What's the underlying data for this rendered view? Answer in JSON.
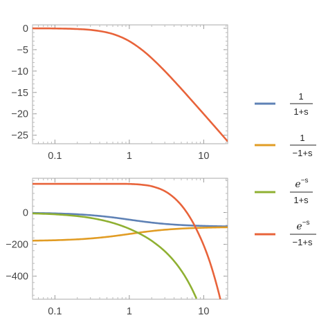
{
  "chart_data": [
    {
      "type": "line",
      "xscale": "log",
      "xlim": [
        0.05,
        21
      ],
      "ylim": [
        -27,
        0.8
      ],
      "x_ticks": [
        0.1,
        1,
        10
      ],
      "x_tick_labels": [
        "0.1",
        "1",
        "10"
      ],
      "y_ticks": [
        0,
        -5,
        -10,
        -15,
        -20,
        -25
      ],
      "y_tick_labels": [
        "0",
        "−5",
        "−10",
        "−15",
        "−20",
        "−25"
      ],
      "grid": false,
      "series": [
        {
          "color": "#e8633a",
          "points": [
            [
              0.05,
              -0.01
            ],
            [
              0.1,
              -0.04
            ],
            [
              0.2,
              -0.17
            ],
            [
              0.3,
              -0.37
            ],
            [
              0.5,
              -0.97
            ],
            [
              0.7,
              -1.74
            ],
            [
              1,
              -3.01
            ],
            [
              1.5,
              -5.12
            ],
            [
              2,
              -6.99
            ],
            [
              3,
              -10.0
            ],
            [
              5,
              -14.15
            ],
            [
              7,
              -17.0
            ],
            [
              10,
              -20.04
            ],
            [
              15,
              -23.53
            ],
            [
              21,
              -26.45
            ]
          ]
        }
      ]
    },
    {
      "type": "line",
      "xscale": "log",
      "xlim": [
        0.05,
        21
      ],
      "ylim": [
        -545,
        215
      ],
      "x_ticks": [
        0.1,
        1,
        10
      ],
      "x_tick_labels": [
        "0.1",
        "1",
        "10"
      ],
      "y_ticks": [
        0,
        -200,
        -400
      ],
      "y_tick_labels": [
        "0",
        "−200",
        "−400"
      ],
      "grid": false,
      "series": [
        {
          "name": "1/(1+s)",
          "color": "#5e81b5",
          "points": [
            [
              0.05,
              -2.9
            ],
            [
              0.1,
              -5.7
            ],
            [
              0.2,
              -11.3
            ],
            [
              0.3,
              -16.7
            ],
            [
              0.5,
              -26.6
            ],
            [
              0.7,
              -35.0
            ],
            [
              1,
              -45
            ],
            [
              1.5,
              -56.3
            ],
            [
              2,
              -63.4
            ],
            [
              3,
              -71.6
            ],
            [
              5,
              -78.7
            ],
            [
              7,
              -81.9
            ],
            [
              10,
              -84.3
            ],
            [
              15,
              -86.2
            ],
            [
              21,
              -87.3
            ]
          ]
        },
        {
          "name": "1/(-1+s)",
          "color": "#e19c24",
          "points": [
            [
              0.05,
              -177.1
            ],
            [
              0.1,
              -174.3
            ],
            [
              0.2,
              -168.7
            ],
            [
              0.3,
              -163.3
            ],
            [
              0.5,
              -153.4
            ],
            [
              0.7,
              -145.0
            ],
            [
              1,
              -135
            ],
            [
              1.5,
              -123.7
            ],
            [
              2,
              -116.6
            ],
            [
              3,
              -108.4
            ],
            [
              5,
              -101.3
            ],
            [
              7,
              -98.1
            ],
            [
              10,
              -95.7
            ],
            [
              15,
              -93.8
            ],
            [
              21,
              -92.7
            ]
          ]
        },
        {
          "name": "e^{-s}/(1+s)",
          "color": "#8fb032",
          "points": [
            [
              0.05,
              -5.8
            ],
            [
              0.1,
              -11.4
            ],
            [
              0.2,
              -22.8
            ],
            [
              0.3,
              -33.9
            ],
            [
              0.5,
              -55.3
            ],
            [
              0.7,
              -75.1
            ],
            [
              1,
              -102.3
            ],
            [
              1.5,
              -142.2
            ],
            [
              2,
              -178.0
            ],
            [
              3,
              -243.5
            ],
            [
              4,
              -305.2
            ],
            [
              5,
              -365.2
            ],
            [
              6,
              -424.2
            ],
            [
              7,
              -482.9
            ],
            [
              8,
              -541.1
            ]
          ]
        },
        {
          "name": "e^{-s}/(-1+s)",
          "color": "#e8633a",
          "points": [
            [
              0.05,
              180.0
            ],
            [
              0.1,
              180.0
            ],
            [
              0.2,
              180.0
            ],
            [
              0.3,
              180.0
            ],
            [
              0.5,
              180.0
            ],
            [
              0.7,
              180.0
            ],
            [
              1,
              179.4
            ],
            [
              1.5,
              174.1
            ],
            [
              2,
              165.0
            ],
            [
              3,
              134.3
            ],
            [
              4,
              92.7
            ],
            [
              5,
              46.0
            ],
            [
              6,
              -3.4
            ],
            [
              7,
              -54.2
            ],
            [
              8,
              -106
            ],
            [
              10,
              -206
            ],
            [
              12,
              -306
            ],
            [
              14,
              -408
            ],
            [
              16,
              -508
            ],
            [
              16.8,
              -548
            ]
          ]
        }
      ]
    }
  ],
  "legend": {
    "entries": [
      {
        "color": "#5e81b5",
        "numerator": "1",
        "denominator": "1+s"
      },
      {
        "color": "#e19c24",
        "numerator": "1",
        "denominator": "−1+s"
      },
      {
        "color": "#8fb032",
        "numerator_base": "e",
        "numerator_exp": "−s",
        "denominator": "1+s"
      },
      {
        "color": "#e8633a",
        "numerator_base": "e",
        "numerator_exp": "−s",
        "denominator": "−1+s"
      }
    ]
  }
}
